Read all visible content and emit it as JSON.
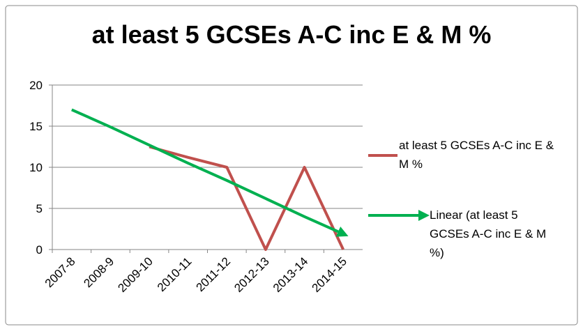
{
  "chart_data": {
    "type": "line",
    "title": "at least 5 GCSEs A-C inc E & M %",
    "categories": [
      "2007-8",
      "2008-9",
      "2009-10",
      "2010-11",
      "2011-12",
      "2012-13",
      "2013-14",
      "2014-15"
    ],
    "series": [
      {
        "name": "at least 5 GCSEs A-C inc E & M %",
        "color": "#c0504d",
        "values": [
          null,
          null,
          12.5,
          11.2,
          10,
          0,
          10,
          0
        ]
      },
      {
        "name": "Linear (at least 5 GCSEs A-C inc E & M %)",
        "color": "#00b050",
        "values": [
          17,
          14.9,
          12.7,
          10.5,
          8.4,
          6.2,
          4.0,
          1.9
        ]
      }
    ],
    "ylim": [
      0,
      20
    ],
    "yticks": [
      0,
      5,
      10,
      15,
      20
    ],
    "grid": true,
    "legend": "right"
  }
}
